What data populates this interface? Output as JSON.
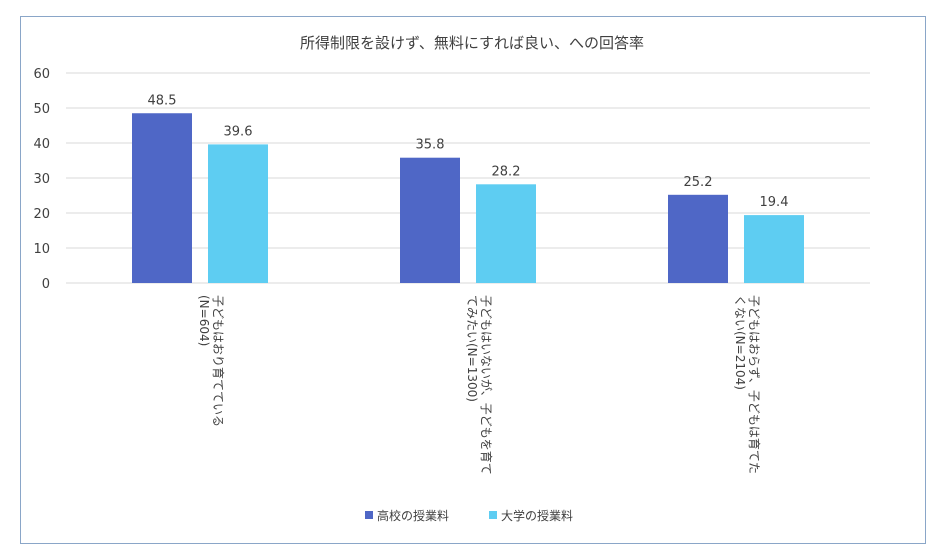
{
  "chart_data": {
    "type": "bar",
    "title": "所得制限を設けず、無料にすれば良い、への回答率",
    "categories": [
      [
        "子どもはおり育てている",
        "(N=604)"
      ],
      [
        "子どもはいないが、子どもを育て",
        "てみたい(N=1300)"
      ],
      [
        "子どもはおらず、子どもは育てた",
        "くない(N=2104)"
      ]
    ],
    "series": [
      {
        "name": "高校の授業料",
        "values": [
          48.5,
          35.8,
          25.2
        ],
        "color": "#4f67c6"
      },
      {
        "name": "大学の授業料",
        "values": [
          39.6,
          28.2,
          19.4
        ],
        "color": "#5ecdf2"
      }
    ],
    "ylim": [
      0,
      60
    ],
    "yticks": [
      0,
      10,
      20,
      30,
      40,
      50,
      60
    ],
    "grid": true,
    "legend": "bottom"
  }
}
